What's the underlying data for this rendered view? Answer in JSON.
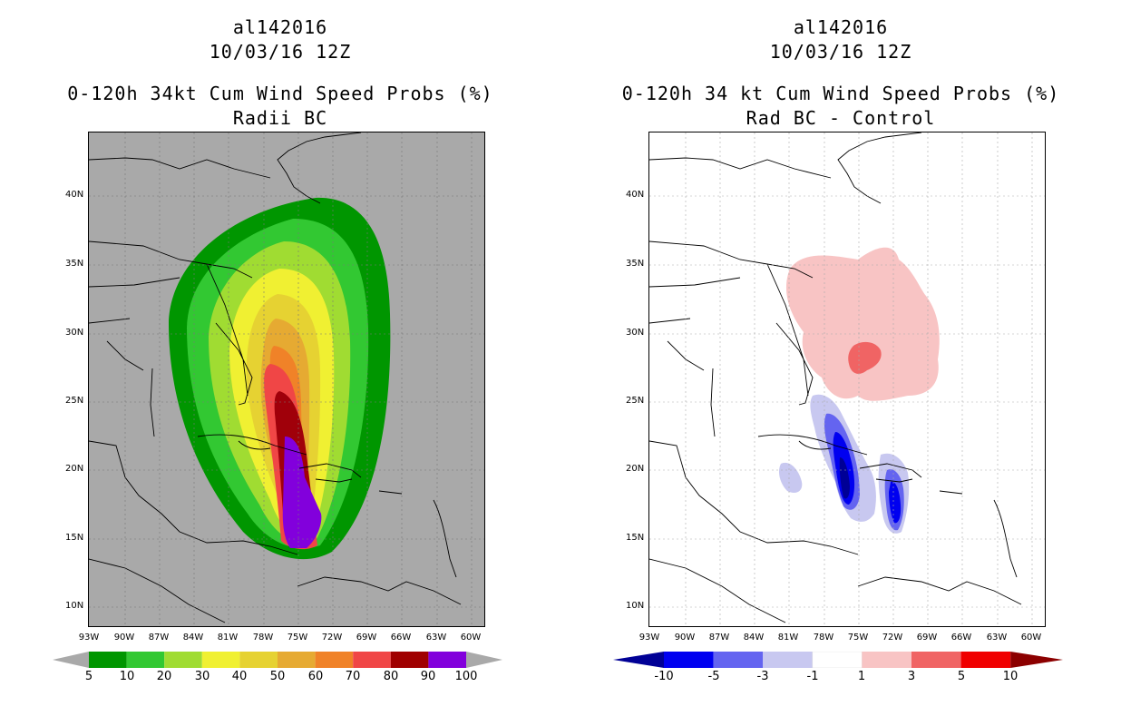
{
  "left_panel": {
    "title_id": "al142016",
    "date": "10/03/16 12Z",
    "product": "0-120h 34kt Cum Wind Speed Probs (%)",
    "subtitle": "Radii BC",
    "map_background": "#a9a9a9",
    "colorbar": {
      "labels": [
        "5",
        "10",
        "20",
        "30",
        "40",
        "50",
        "60",
        "70",
        "80",
        "90",
        "100"
      ],
      "colors": [
        "#009600",
        "#32c832",
        "#a0dc32",
        "#f0f032",
        "#e6d232",
        "#e6aa32",
        "#f08228",
        "#f04646",
        "#a00000",
        "#8200dc"
      ],
      "extend_color": "#a9a9a9"
    }
  },
  "right_panel": {
    "title_id": "al142016",
    "date": "10/03/16 12Z",
    "product": "0-120h 34 kt Cum Wind Speed Probs (%)",
    "subtitle": "Rad BC - Control",
    "map_background": "#ffffff",
    "colorbar": {
      "labels": [
        "-10",
        "-5",
        "-3",
        "-1",
        "1",
        "3",
        "5",
        "10"
      ],
      "colors": [
        "#0000f0",
        "#6464f0",
        "#c8c8f0",
        "#ffffff",
        "#f8c4c4",
        "#f06464",
        "#f00000"
      ],
      "extend_low": "#000096",
      "extend_high": "#8c0000"
    }
  },
  "axes": {
    "lat_labels": [
      "40N",
      "35N",
      "30N",
      "25N",
      "20N",
      "15N",
      "10N"
    ],
    "lon_labels": [
      "93W",
      "90W",
      "87W",
      "84W",
      "81W",
      "78W",
      "75W",
      "72W",
      "69W",
      "66W",
      "63W",
      "60W"
    ]
  }
}
